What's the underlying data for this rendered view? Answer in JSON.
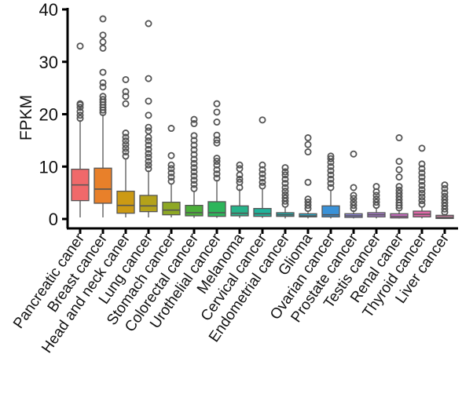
{
  "chart_data": {
    "type": "box",
    "title": "",
    "xlabel": "",
    "ylabel": "FPKM",
    "ylim": [
      0,
      40
    ],
    "yticks": [
      0,
      10,
      20,
      30,
      40
    ],
    "grid": false,
    "legend": "none",
    "categories": [
      "Pancreatic caner",
      "Breast cancer",
      "Head and neck caner",
      "Lung cancer",
      "Stomach cancer",
      "Colorectal cancer",
      "Urothelial cancer",
      "Melanoma",
      "Cervical cancer",
      "Endometrial cancer",
      "Glioma",
      "Ovarian cancer",
      "Prostate cancer",
      "Testis cancer",
      "Renal caner",
      "Thyroid cancer",
      "Liver cancer"
    ],
    "colors": [
      "#F0696A",
      "#E8802A",
      "#CC9A14",
      "#B4A21A",
      "#8EA824",
      "#4CAF3A",
      "#2DB55A",
      "#27B38A",
      "#20B39B",
      "#1EB0AE",
      "#2AA8C8",
      "#3A92D8",
      "#8E86DA",
      "#B07ED8",
      "#D070C8",
      "#E067A8",
      "#C27A9A"
    ],
    "series": [
      {
        "min": 0.3,
        "q1": 3.5,
        "median": 6.5,
        "q3": 9.5,
        "max": 18.9,
        "outliers": [
          19.2,
          19.8,
          20.5,
          21.3,
          21.8,
          22.0,
          33.0
        ]
      },
      {
        "min": 0.3,
        "q1": 3.0,
        "median": 5.7,
        "q3": 9.7,
        "max": 20.0,
        "outliers": [
          20.3,
          20.8,
          21.3,
          21.8,
          22.3,
          22.8,
          23.4,
          25.2,
          26.0,
          28.0,
          32.6,
          33.8,
          35.1,
          38.2
        ]
      },
      {
        "min": 0.3,
        "q1": 1.1,
        "median": 2.6,
        "q3": 5.3,
        "max": 11.5,
        "outliers": [
          12.0,
          12.8,
          13.5,
          14.2,
          14.9,
          15.6,
          16.4,
          22.0,
          23.4,
          24.3,
          26.6
        ]
      },
      {
        "min": 0.3,
        "q1": 1.4,
        "median": 2.5,
        "q3": 4.5,
        "max": 9.3,
        "outliers": [
          9.6,
          10.3,
          11.0,
          11.8,
          12.5,
          13.3,
          14.1,
          14.9,
          15.6,
          16.8,
          17.5,
          19.8,
          22.5,
          26.8,
          37.3
        ]
      },
      {
        "min": 0.3,
        "q1": 0.8,
        "median": 1.7,
        "q3": 3.2,
        "max": 6.8,
        "outliers": [
          7.2,
          8.0,
          8.8,
          9.6,
          10.3,
          12.1,
          17.3
        ]
      },
      {
        "min": 0.2,
        "q1": 0.6,
        "median": 1.2,
        "q3": 2.6,
        "max": 5.4,
        "outliers": [
          5.8,
          6.6,
          7.4,
          8.2,
          9.0,
          9.8,
          10.6,
          11.4,
          12.3,
          13.2,
          14.1,
          15.0,
          15.9,
          18.2,
          19.0
        ]
      },
      {
        "min": 0.2,
        "q1": 0.5,
        "median": 1.2,
        "q3": 3.3,
        "max": 7.5,
        "outliers": [
          7.8,
          8.6,
          9.4,
          10.3,
          11.0,
          11.6,
          14.5,
          15.1,
          16.0,
          18.5,
          20.4,
          22.0
        ]
      },
      {
        "min": 0.2,
        "q1": 0.6,
        "median": 1.1,
        "q3": 2.5,
        "max": 5.8,
        "outliers": [
          6.0,
          7.0,
          7.6,
          8.4,
          9.6,
          10.3
        ]
      },
      {
        "min": 0.2,
        "q1": 0.5,
        "median": 1.0,
        "q3": 2.0,
        "max": 5.8,
        "outliers": [
          6.3,
          7.0,
          7.8,
          8.6,
          9.4,
          10.3,
          18.9
        ]
      },
      {
        "min": 0.1,
        "q1": 0.5,
        "median": 0.8,
        "q3": 1.2,
        "max": 2.4,
        "outliers": [
          2.8,
          3.4,
          4.0,
          4.6,
          5.3,
          6.0,
          6.8,
          7.6,
          8.4,
          9.0,
          9.8
        ]
      },
      {
        "min": 0.1,
        "q1": 0.4,
        "median": 0.6,
        "q3": 1.0,
        "max": 1.6,
        "outliers": [
          2.0,
          2.6,
          3.2,
          3.8,
          7.0,
          12.8,
          14.2,
          15.5
        ]
      },
      {
        "min": 0.1,
        "q1": 0.4,
        "median": 0.8,
        "q3": 2.5,
        "max": 5.5,
        "outliers": [
          6.0,
          6.8,
          7.6,
          8.4,
          9.2,
          10.0,
          10.8,
          11.5,
          12.0
        ]
      },
      {
        "min": 0.1,
        "q1": 0.3,
        "median": 0.6,
        "q3": 1.0,
        "max": 1.7,
        "outliers": [
          2.0,
          2.6,
          3.2,
          3.9,
          4.5,
          6.0,
          12.4
        ]
      },
      {
        "min": 0.1,
        "q1": 0.4,
        "median": 0.8,
        "q3": 1.2,
        "max": 2.2,
        "outliers": [
          2.6,
          3.2,
          3.8,
          4.5,
          5.2,
          6.2
        ]
      },
      {
        "min": 0.1,
        "q1": 0.2,
        "median": 0.5,
        "q3": 1.0,
        "max": 1.8,
        "outliers": [
          2.1,
          2.6,
          3.1,
          3.7,
          4.3,
          4.9,
          5.5,
          6.2,
          8.0,
          9.4,
          11.0,
          15.5
        ]
      },
      {
        "min": 0.1,
        "q1": 0.4,
        "median": 0.9,
        "q3": 1.5,
        "max": 2.4,
        "outliers": [
          2.8,
          3.5,
          4.2,
          4.9,
          5.6,
          6.4,
          7.2,
          8.0,
          8.8,
          9.6,
          10.5,
          13.5
        ]
      },
      {
        "min": 0.0,
        "q1": 0.1,
        "median": 0.3,
        "q3": 0.7,
        "max": 1.0,
        "outliers": [
          1.3,
          1.9,
          2.5,
          3.1,
          3.7,
          4.3,
          5.0,
          5.8,
          6.5
        ]
      }
    ]
  }
}
